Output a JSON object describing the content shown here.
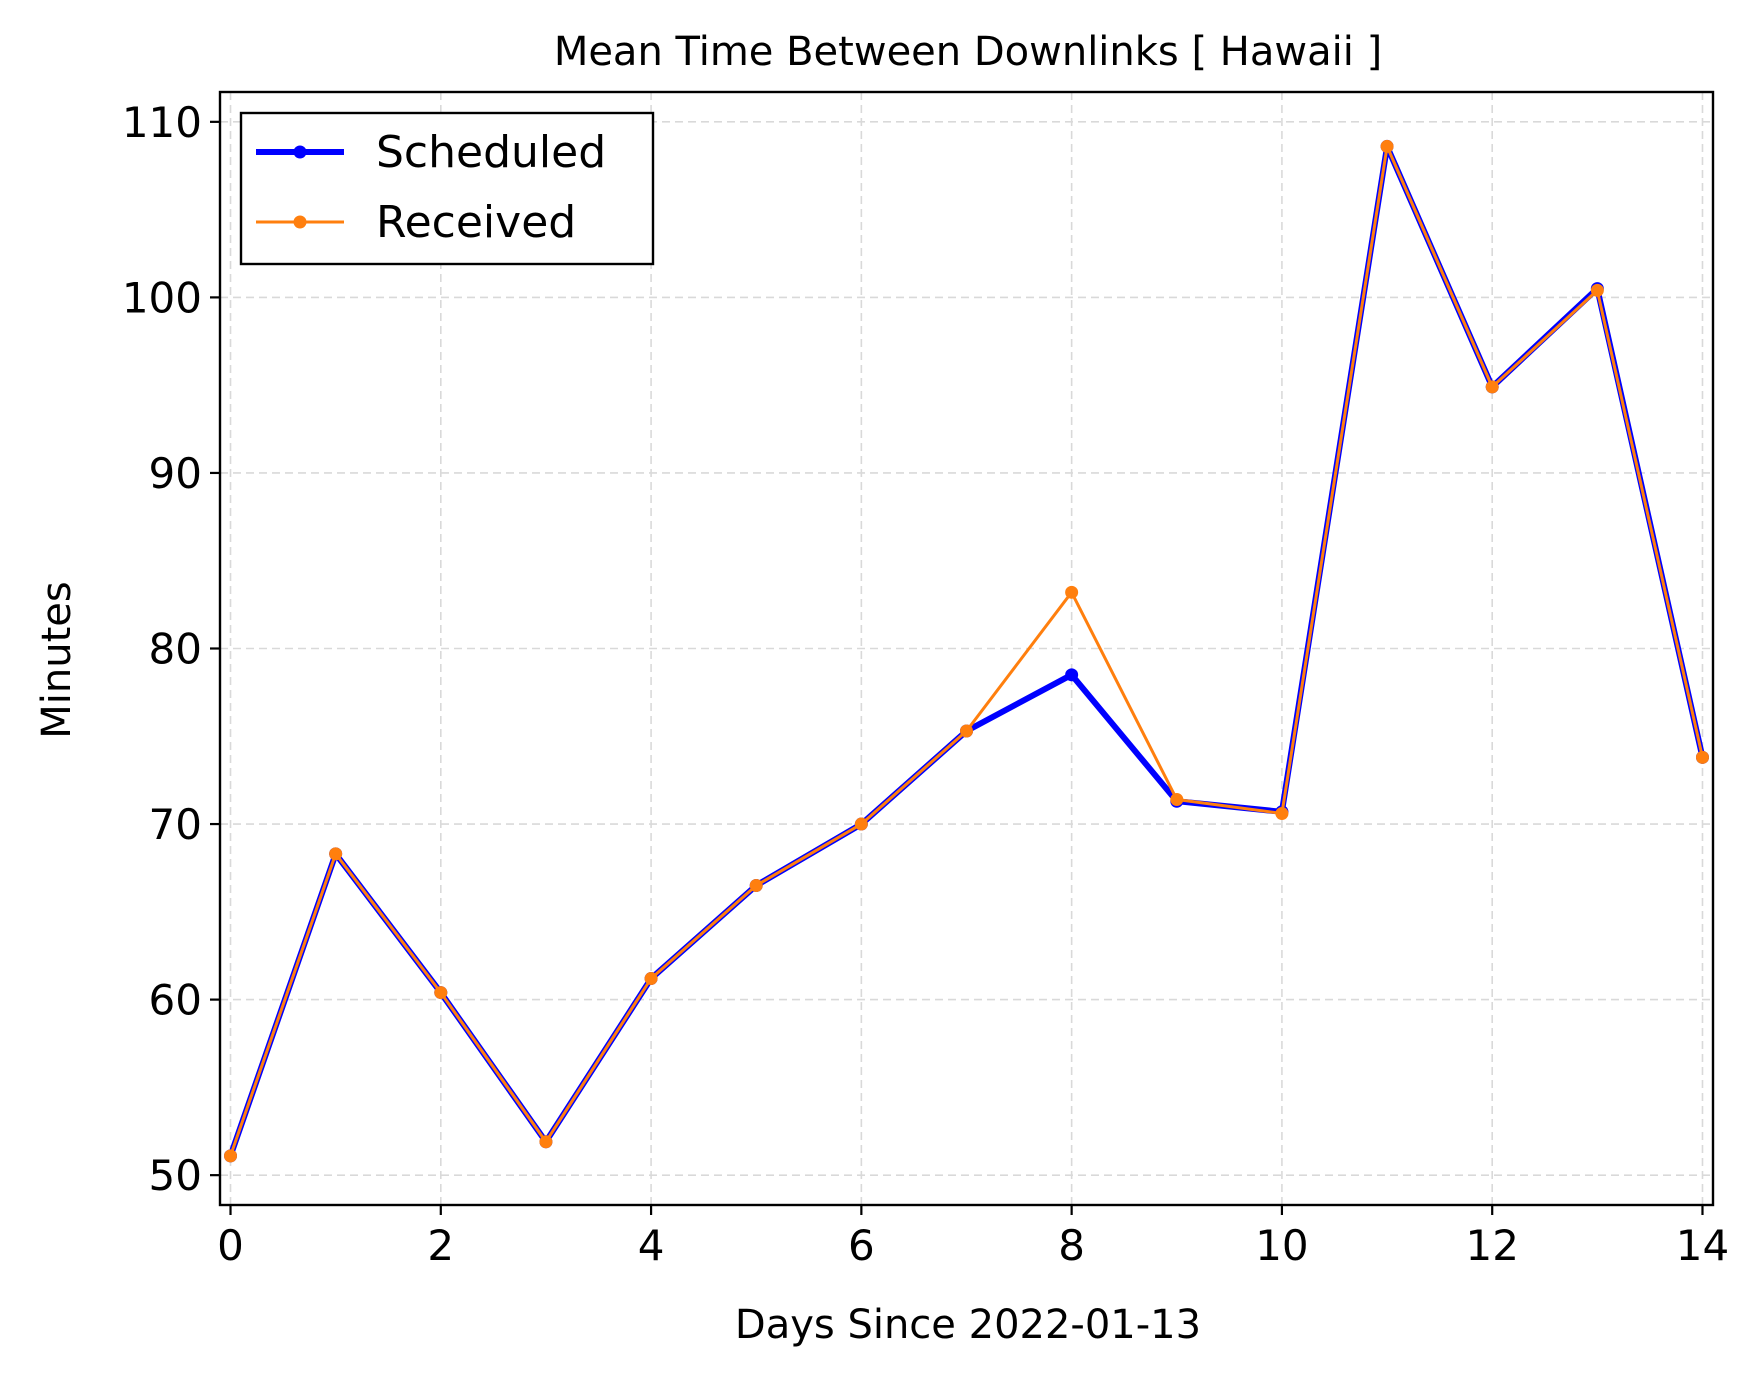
{
  "chart_data": {
    "type": "line",
    "title": "Mean Time Between Downlinks [ Hawaii ]",
    "xlabel": "Days Since 2022-01-13",
    "ylabel": "Minutes",
    "xlim": [
      -0.1,
      14.1
    ],
    "ylim": [
      48.3,
      111.7
    ],
    "xticks": [
      0,
      2,
      4,
      6,
      8,
      10,
      12,
      14
    ],
    "yticks": [
      50,
      60,
      70,
      80,
      90,
      100,
      110
    ],
    "grid": true,
    "legend_position": "top-left",
    "x": [
      0,
      1,
      2,
      3,
      4,
      5,
      6,
      7,
      8,
      9,
      10,
      11,
      12,
      13,
      14
    ],
    "series": [
      {
        "name": "Scheduled",
        "color": "#0000ff",
        "values": [
          51.1,
          68.3,
          60.4,
          51.9,
          61.2,
          66.5,
          70.0,
          75.3,
          78.5,
          71.3,
          70.7,
          108.6,
          94.9,
          100.5,
          73.8
        ]
      },
      {
        "name": "Received",
        "color": "#ff7f0e",
        "values": [
          51.1,
          68.3,
          60.4,
          51.9,
          61.2,
          66.5,
          70.0,
          75.3,
          83.2,
          71.4,
          70.6,
          108.6,
          94.9,
          100.4,
          73.8
        ]
      }
    ]
  }
}
